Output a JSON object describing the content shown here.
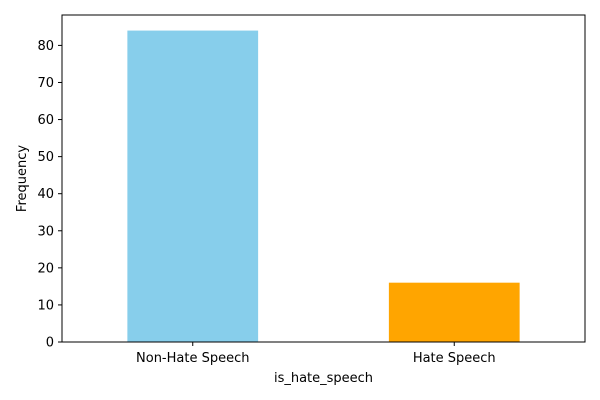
{
  "chart_data": {
    "type": "bar",
    "categories": [
      "Non-Hate Speech",
      "Hate Speech"
    ],
    "values": [
      84,
      16
    ],
    "colors": [
      "#87ceeb",
      "#ffa500"
    ],
    "xlabel": "is_hate_speech",
    "ylabel": "Frequency",
    "ylim": [
      0,
      88.2
    ],
    "yticks": [
      0,
      10,
      20,
      30,
      40,
      50,
      60,
      70,
      80
    ],
    "grid": false,
    "legend": "none"
  }
}
